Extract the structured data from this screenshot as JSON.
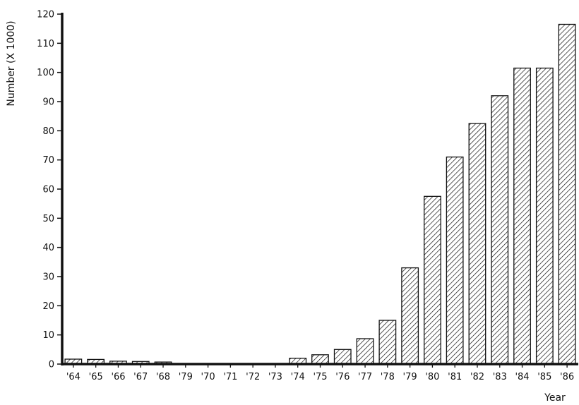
{
  "chart_data": {
    "type": "bar",
    "title": "",
    "xlabel": "Year",
    "ylabel": "Number (X 1000)",
    "ylim": [
      0,
      120
    ],
    "yticks": [
      0,
      10,
      20,
      30,
      40,
      50,
      60,
      70,
      80,
      90,
      100,
      110,
      120
    ],
    "grid": false,
    "legend": "none",
    "bar_fill": "diagonal-hatch",
    "colors": {
      "ink": "#111111",
      "background": "#ffffff"
    },
    "categories": [
      "'64",
      "'65",
      "'66",
      "'67",
      "'68",
      "'79",
      "'70",
      "'71",
      "'72",
      "'73",
      "'74",
      "'75",
      "'76",
      "'77",
      "'78",
      "'79",
      "'80",
      "'81",
      "'82",
      "'83",
      "'84",
      "'85",
      "'86"
    ],
    "values": [
      1.7,
      1.6,
      1.0,
      0.9,
      0.7,
      0.2,
      0.1,
      0.1,
      0.1,
      0.1,
      2.0,
      3.2,
      5.0,
      8.7,
      15.0,
      33.0,
      57.5,
      71.0,
      82.5,
      92.0,
      101.5,
      101.5,
      116.5
    ]
  }
}
